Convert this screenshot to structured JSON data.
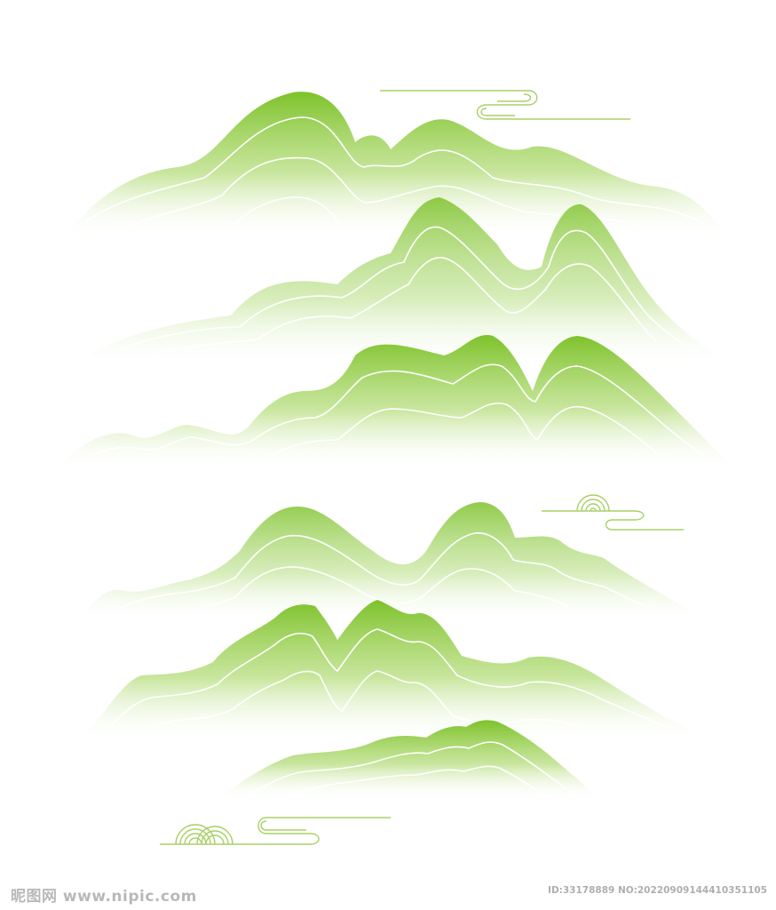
{
  "illustration": {
    "subject": "green-mountain-landscape",
    "colors": {
      "mountain": "#7dc22b",
      "line": "#ffffff",
      "cloud": "#a8d066",
      "background": "#ffffff"
    }
  },
  "watermark": {
    "site_text": "昵图网 www.nipic.com",
    "id_text": "ID:33178889 NO:20220909144410351105"
  }
}
